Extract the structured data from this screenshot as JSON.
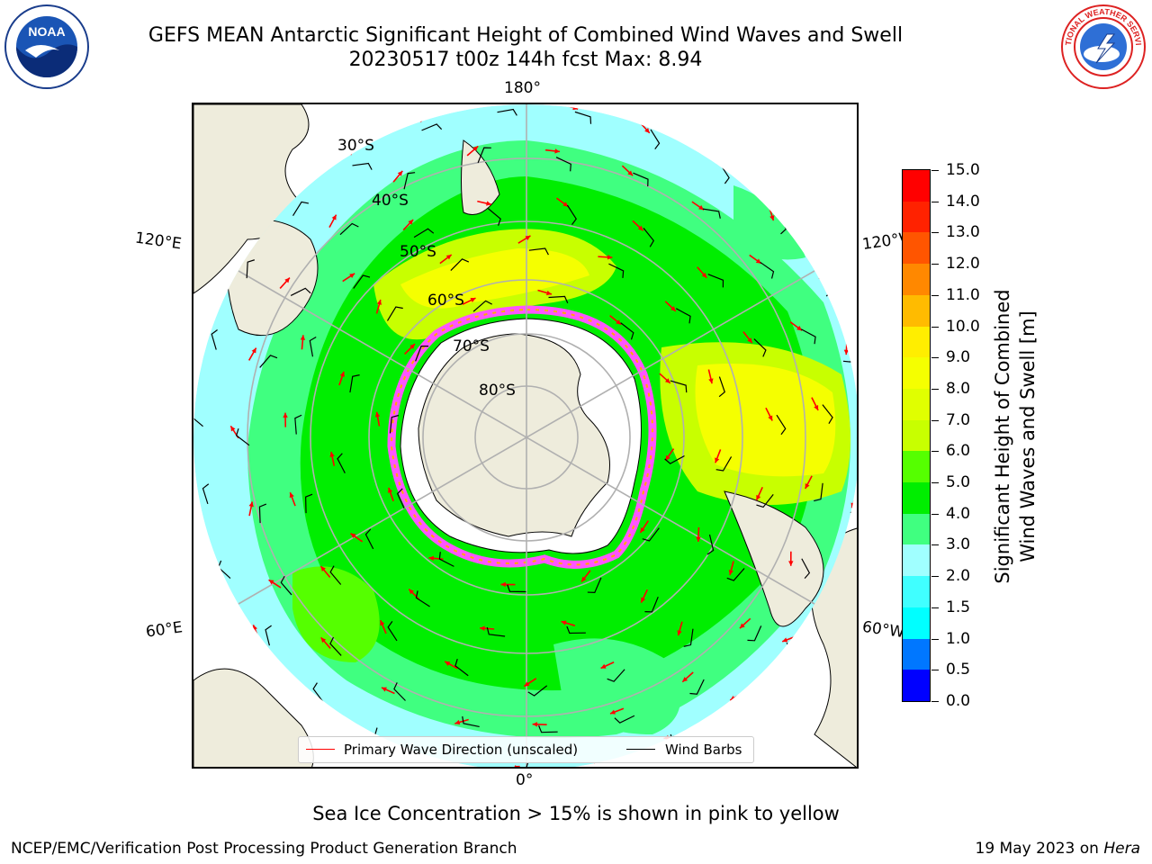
{
  "title": {
    "line1": "GEFS MEAN Antarctic Significant Height of Combined Wind Waves and Swell",
    "line2": "20230517 t00z 144h fcst   Max: 8.94"
  },
  "logos": {
    "noaa": {
      "text": "NOAA",
      "icon": "noaa-seal-icon"
    },
    "nws": {
      "text": "NATIONAL WEATHER SERVICE",
      "icon": "nws-seal-icon"
    }
  },
  "map": {
    "projection": "south polar stereographic",
    "longitude_labels": {
      "top": "180°",
      "bottom": "0°",
      "upper_left": "120°E",
      "upper_right": "120°W",
      "lower_left": "60°E",
      "lower_right": "60°W"
    },
    "latitude_labels": [
      "30°S",
      "40°S",
      "50°S",
      "60°S",
      "70°S",
      "80°S"
    ],
    "colors": {
      "land": "#eeecdc",
      "antarctic_ice": "#ffffff",
      "sea_ice_edge": [
        "#ff55ff",
        "#ffaa00",
        "#ffff00"
      ],
      "wave_arrows": "#ff0000",
      "wind_barbs": "#000000",
      "gridlines": "#b0b0b0"
    }
  },
  "legend": {
    "primary_wave_direction": "Primary Wave Direction (unscaled)",
    "wind_barbs": "Wind Barbs"
  },
  "colorbar": {
    "title_line1": "Significant Height of Combined",
    "title_line2": "Wind Waves and Swell [m]",
    "ticks": [
      "0.0",
      "0.5",
      "1.0",
      "1.5",
      "2.0",
      "3.0",
      "4.0",
      "5.0",
      "6.0",
      "7.0",
      "8.0",
      "9.0",
      "10.0",
      "11.0",
      "12.0",
      "13.0",
      "14.0",
      "15.0"
    ],
    "colors": [
      "#0000ff",
      "#0077ff",
      "#00ffff",
      "#40ffff",
      "#a0ffff",
      "#40ff80",
      "#00ee00",
      "#55ff00",
      "#c8ff00",
      "#e0ff00",
      "#f5ff00",
      "#ffee00",
      "#ffbb00",
      "#ff8800",
      "#ff5500",
      "#ff2200",
      "#ff0000"
    ]
  },
  "footer": {
    "sea_ice_note": "Sea Ice Concentration > 15% is shown in pink to yellow",
    "branch": "NCEP/EMC/Verification Post Processing Product Generation Branch",
    "date": "19 May 2023 on ",
    "host": "Hera"
  }
}
